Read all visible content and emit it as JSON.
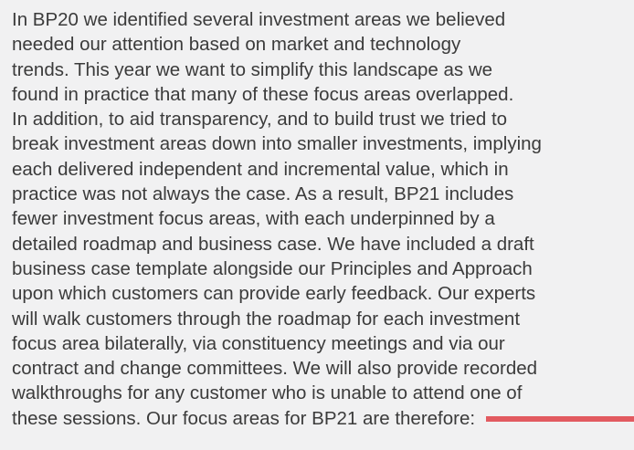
{
  "paragraph": {
    "lines": [
      "In BP20 we identified several investment areas we believed",
      "needed our attention based on market and technology",
      "trends. This year we want to simplify this landscape as we",
      "found in practice that many of these focus areas overlapped.",
      "In addition, to aid transparency, and to build trust we tried to",
      "break investment areas down into smaller investments, implying",
      "each delivered independent and incremental value, which in",
      "practice was not always the case. As a result, BP21 includes",
      "fewer investment focus areas, with each underpinned by a",
      "detailed roadmap and business case. We have included a draft",
      "business case template alongside our Principles and Approach",
      "upon which customers can provide early feedback. Our experts",
      "will walk customers through the roadmap for each investment",
      "focus area bilaterally, via constituency meetings and via our",
      "contract and change committees. We will also provide recorded",
      "walkthroughs for any customer who is unable to attend one of",
      "these sessions. Our focus areas for BP21 are therefore:"
    ]
  }
}
